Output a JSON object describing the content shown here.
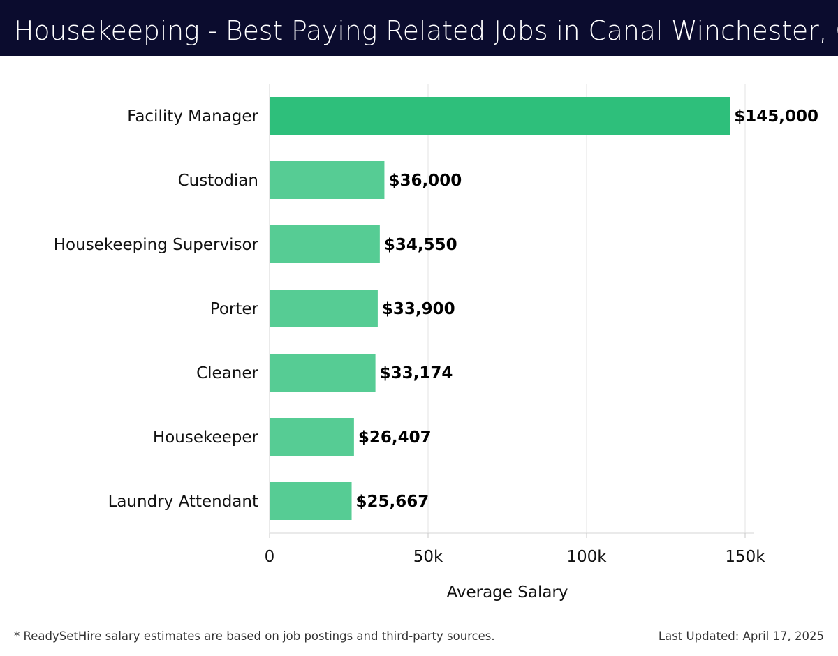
{
  "header": {
    "title": "Housekeeping - Best Paying Related Jobs in Canal Winchester, OH"
  },
  "footer": {
    "note": "* ReadySetHire salary estimates are based on job postings and third-party sources.",
    "updated": "Last Updated: April 17, 2025"
  },
  "colors": {
    "header_bg": "#0b0c2e",
    "top_bar": "#2ebf7b",
    "bar": "#56cc94",
    "grid": "#e3e3e3"
  },
  "chart_data": {
    "type": "bar",
    "orientation": "horizontal",
    "categories": [
      "Facility Manager",
      "Custodian",
      "Housekeeping Supervisor",
      "Porter",
      "Cleaner",
      "Housekeeper",
      "Laundry Attendant"
    ],
    "values": [
      145000,
      36000,
      34550,
      33900,
      33174,
      26407,
      25667
    ],
    "value_labels": [
      "$145,000",
      "$36,000",
      "$34,550",
      "$33,900",
      "$33,174",
      "$26,407",
      "$25,667"
    ],
    "xlabel": "Average Salary",
    "xlim": [
      0,
      150000
    ],
    "xticks": [
      0,
      50000,
      100000,
      150000
    ],
    "xtick_labels": [
      "0",
      "50k",
      "100k",
      "150k"
    ],
    "grid": true
  }
}
